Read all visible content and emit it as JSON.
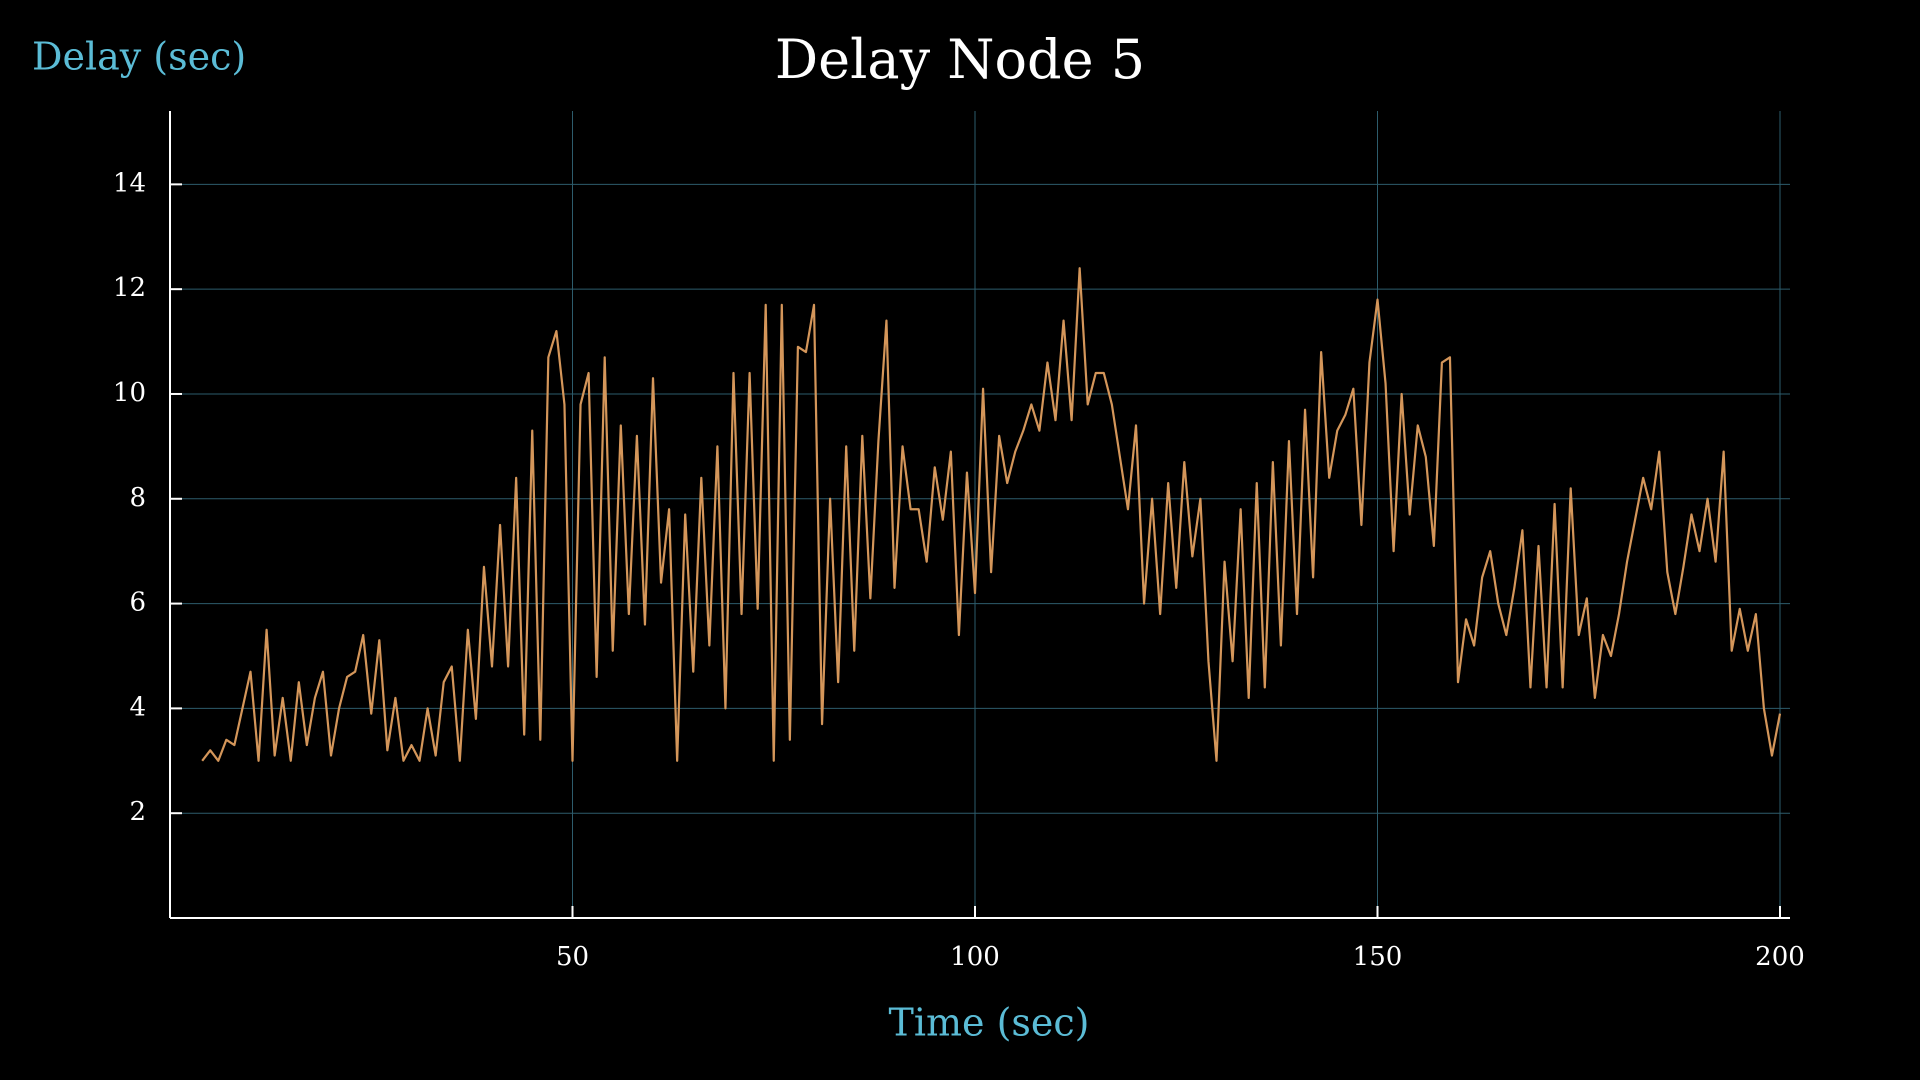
{
  "chart_data": {
    "type": "line",
    "title": "Delay Node 5",
    "xlabel": "Time (sec)",
    "ylabel": "Delay (sec)",
    "x": [
      4,
      5,
      6,
      7,
      8,
      9,
      10,
      11,
      12,
      13,
      14,
      15,
      16,
      17,
      18,
      19,
      20,
      21,
      22,
      23,
      24,
      25,
      26,
      27,
      28,
      29,
      30,
      31,
      32,
      33,
      34,
      35,
      36,
      37,
      38,
      39,
      40,
      41,
      42,
      43,
      44,
      45,
      46,
      47,
      48,
      49,
      50,
      51,
      52,
      53,
      54,
      55,
      56,
      57,
      58,
      59,
      60,
      61,
      62,
      63,
      64,
      65,
      66,
      67,
      68,
      69,
      70,
      71,
      72,
      73,
      74,
      75,
      76,
      77,
      78,
      79,
      80,
      81,
      82,
      83,
      84,
      85,
      86,
      87,
      88,
      89,
      90,
      91,
      92,
      93,
      94,
      95,
      96,
      97,
      98,
      99,
      100,
      101,
      102,
      103,
      104,
      105,
      106,
      107,
      108,
      109,
      110,
      111,
      112,
      113,
      114,
      115,
      116,
      117,
      118,
      119,
      120,
      121,
      122,
      123,
      124,
      125,
      126,
      127,
      128,
      129,
      130,
      131,
      132,
      133,
      134,
      135,
      136,
      137,
      138,
      139,
      140,
      141,
      142,
      143,
      144,
      145,
      146,
      147,
      148,
      149,
      150,
      151,
      152,
      153,
      154,
      155,
      156,
      157,
      158,
      159,
      160,
      161,
      162,
      163,
      164,
      165,
      166,
      167,
      168,
      169,
      170,
      171,
      172,
      173,
      174,
      175,
      176,
      177,
      178,
      179,
      180,
      181,
      182,
      183,
      184,
      185,
      186,
      187,
      188,
      189,
      190,
      191,
      192,
      193,
      194,
      195,
      196,
      197,
      198,
      199,
      200
    ],
    "series": [
      {
        "name": "Delay Node 5",
        "color": "#d4965a",
        "values": [
          3,
          3.2,
          3,
          3.4,
          3.3,
          4,
          4.7,
          3,
          5.5,
          3.1,
          4.2,
          3,
          4.5,
          3.3,
          4.2,
          4.7,
          3.1,
          4,
          4.6,
          4.7,
          5.4,
          3.9,
          5.3,
          3.2,
          4.2,
          3,
          3.3,
          3,
          4,
          3.1,
          4.5,
          4.8,
          3,
          5.5,
          3.8,
          6.7,
          4.8,
          7.5,
          4.8,
          8.4,
          3.5,
          9.3,
          3.4,
          10.7,
          11.2,
          9.8,
          3,
          9.8,
          10.4,
          4.6,
          10.7,
          5.1,
          9.4,
          5.8,
          9.2,
          5.6,
          10.3,
          6.4,
          7.8,
          3,
          7.7,
          4.7,
          8.4,
          5.2,
          9,
          4,
          10.4,
          5.8,
          10.4,
          5.9,
          11.7,
          3,
          11.7,
          3.4,
          10.9,
          10.8,
          11.7,
          3.7,
          8,
          4.5,
          9,
          5.1,
          9.2,
          6.1,
          9.1,
          11.4,
          6.3,
          9,
          7.8,
          7.8,
          6.8,
          8.6,
          7.6,
          8.9,
          5.4,
          8.5,
          6.2,
          10.1,
          6.6,
          9.2,
          8.3,
          8.9,
          9.3,
          9.8,
          9.3,
          10.6,
          9.5,
          11.4,
          9.5,
          12.4,
          9.8,
          10.4,
          10.4,
          9.8,
          8.8,
          7.8,
          9.4,
          6,
          8,
          5.8,
          8.3,
          6.3,
          8.7,
          6.9,
          8,
          4.9,
          3,
          6.8,
          4.9,
          7.8,
          4.2,
          8.3,
          4.4,
          8.7,
          5.2,
          9.1,
          5.8,
          9.7,
          6.5,
          10.8,
          8.4,
          9.3,
          9.6,
          10.1,
          7.5,
          10.6,
          11.8,
          10.2,
          7,
          10,
          7.7,
          9.4,
          8.8,
          7.1,
          10.6,
          10.7,
          4.5,
          5.7,
          5.2,
          6.5,
          7,
          6,
          5.4,
          6.3,
          7.4,
          4.4,
          7.1,
          4.4,
          7.9,
          4.4,
          8.2,
          5.4,
          6.1,
          4.2,
          5.4,
          5,
          5.8,
          6.8,
          7.6,
          8.4,
          7.8,
          8.9,
          6.6,
          5.8,
          6.7,
          7.7,
          7,
          8,
          6.8,
          8.9,
          5.1,
          5.9,
          5.1,
          5.8,
          4,
          3.1,
          3.9
        ]
      }
    ],
    "xlim": [
      0,
      200
    ],
    "ylim": [
      0,
      15.4
    ],
    "xticks": [
      50,
      100,
      150,
      200
    ],
    "yticks": [
      2,
      4,
      6,
      8,
      10,
      12,
      14
    ],
    "grid": true
  }
}
